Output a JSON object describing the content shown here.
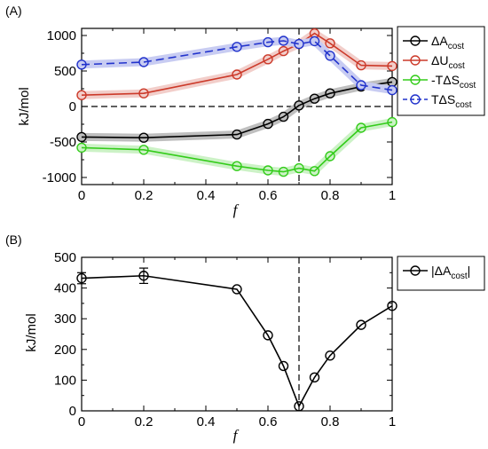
{
  "chart_data": [
    {
      "panel_label": "(A)",
      "type": "line",
      "xlabel": "f",
      "ylabel": "kJ/mol",
      "xlim": [
        0,
        1
      ],
      "ylim": [
        -1100,
        1100
      ],
      "xticks": [
        "0",
        "0.2",
        "0.4",
        "0.6",
        "0.8",
        "1"
      ],
      "yticks": [
        "-1000",
        "-500",
        "0",
        "500",
        "1000"
      ],
      "reference_lines": {
        "horizontal_dashed_y": 0,
        "vertical_dashed_x": 0.7
      },
      "legend_position": "right",
      "series": [
        {
          "name_main": "ΔA",
          "name_sub": "cost",
          "color": "#000000",
          "dashed": false,
          "x": [
            0,
            0.2,
            0.5,
            0.6,
            0.65,
            0.7,
            0.75,
            0.8,
            0.9,
            1.0
          ],
          "y": [
            -430,
            -440,
            -395,
            -245,
            -145,
            15,
            110,
            185,
            280,
            345
          ]
        },
        {
          "name_main": "ΔU",
          "name_sub": "cost",
          "color": "#cc3a2a",
          "dashed": false,
          "x": [
            0,
            0.2,
            0.5,
            0.6,
            0.65,
            0.7,
            0.75,
            0.8,
            0.9,
            1.0
          ],
          "y": [
            160,
            185,
            450,
            665,
            780,
            880,
            1030,
            890,
            580,
            570
          ]
        },
        {
          "name_main": "-TΔS",
          "name_sub": "cost",
          "color": "#33cc1a",
          "dashed": false,
          "x": [
            0,
            0.2,
            0.5,
            0.6,
            0.65,
            0.7,
            0.75,
            0.8,
            0.9,
            1.0
          ],
          "y": [
            -580,
            -610,
            -840,
            -900,
            -920,
            -870,
            -910,
            -700,
            -300,
            -220
          ]
        },
        {
          "name_main": "TΔS",
          "name_sub": "cost",
          "color": "#2233cc",
          "dashed": true,
          "x": [
            0,
            0.2,
            0.5,
            0.6,
            0.65,
            0.7,
            0.75,
            0.8,
            0.9,
            1.0
          ],
          "y": [
            590,
            625,
            840,
            905,
            925,
            880,
            920,
            715,
            300,
            230
          ]
        }
      ]
    },
    {
      "panel_label": "(B)",
      "type": "line",
      "xlabel": "f",
      "ylabel": "kJ/mol",
      "xlim": [
        0,
        1
      ],
      "ylim": [
        0,
        500
      ],
      "xticks": [
        "0",
        "0.2",
        "0.4",
        "0.6",
        "0.8",
        "1"
      ],
      "yticks": [
        "0",
        "100",
        "200",
        "300",
        "400",
        "500"
      ],
      "reference_lines": {
        "vertical_dashed_x": 0.7
      },
      "legend_position": "top-right",
      "series": [
        {
          "name_main": "|ΔA",
          "name_sub": "cost",
          "name_tail": "|",
          "color": "#000000",
          "dashed": false,
          "x": [
            0,
            0.2,
            0.5,
            0.6,
            0.65,
            0.7,
            0.75,
            0.8,
            0.9,
            1.0
          ],
          "y": [
            432,
            440,
            396,
            246,
            146,
            15,
            109,
            180,
            280,
            342
          ],
          "error": [
            18,
            25,
            0,
            0,
            0,
            0,
            0,
            0,
            0,
            0
          ]
        }
      ]
    }
  ]
}
